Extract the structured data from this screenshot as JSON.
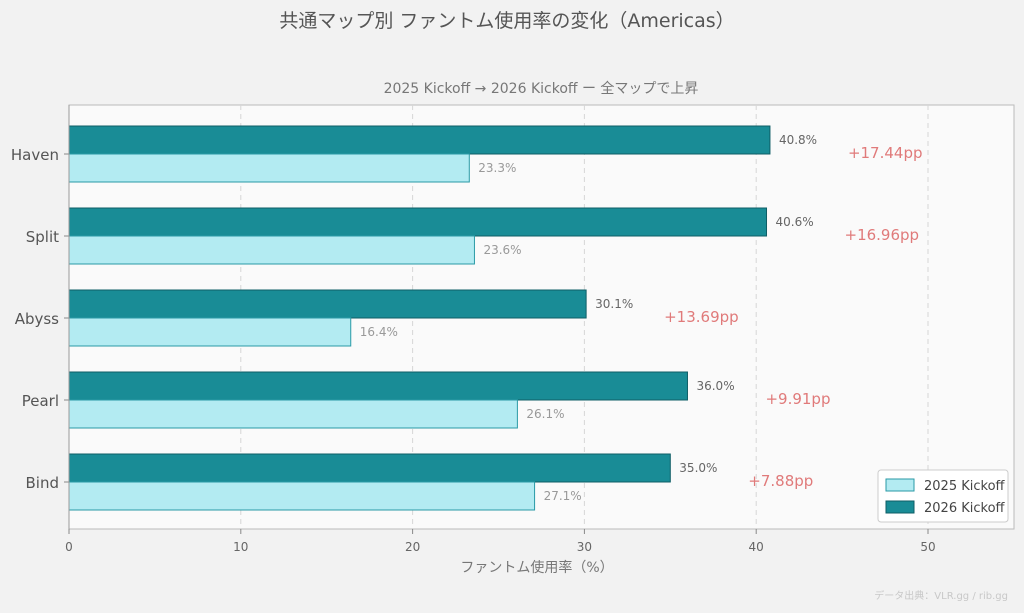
{
  "chart_data": {
    "type": "bar",
    "orientation": "horizontal",
    "title": "共通マップ別 ファントム使用率の変化（Americas）",
    "subtitle": "2025 Kickoff → 2026 Kickoff ー 全マップで上昇",
    "xlabel": "ファントム使用率（%）",
    "ylabel": "",
    "xlim": [
      0,
      55
    ],
    "xticks": [
      0,
      10,
      20,
      30,
      40,
      50
    ],
    "grid": "vertical-dashed",
    "legend_position": "bottom-right",
    "categories": [
      "Haven",
      "Split",
      "Abyss",
      "Pearl",
      "Bind"
    ],
    "series": [
      {
        "name": "2025 Kickoff",
        "color": "#b3ebf2",
        "edge": "#2a9aa6",
        "values": [
          23.3,
          23.6,
          16.4,
          26.1,
          27.1
        ],
        "labels": [
          "23.3%",
          "23.6%",
          "16.4%",
          "26.1%",
          "27.1%"
        ]
      },
      {
        "name": "2026 Kickoff",
        "color": "#198c96",
        "edge": "#0e5e66",
        "values": [
          40.8,
          40.6,
          30.1,
          36.0,
          35.0
        ],
        "labels": [
          "40.8%",
          "40.6%",
          "30.1%",
          "36.0%",
          "35.0%"
        ]
      }
    ],
    "deltas": [
      "+17.44pp",
      "+16.96pp",
      "+13.69pp",
      "+9.91pp",
      "+7.88pp"
    ],
    "delta_color": "#e07a7a"
  },
  "source": "データ出典：VLR.gg / rib.gg"
}
